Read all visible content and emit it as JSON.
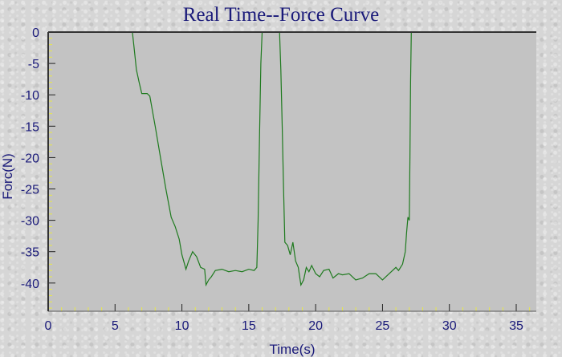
{
  "chart_data": {
    "type": "line",
    "title": "Real Time--Force Curve",
    "xlabel": "Time(s)",
    "ylabel": "Forc(N)",
    "xlim": [
      0,
      36.5
    ],
    "ylim": [
      -44.5,
      0
    ],
    "x_ticks": [
      "0",
      "5",
      "10",
      "15",
      "20",
      "25",
      "30",
      "35"
    ],
    "y_ticks": [
      "0",
      "-5",
      "-10",
      "-15",
      "-20",
      "-25",
      "-30",
      "-35",
      "-40"
    ],
    "colors": {
      "series": "#1e7a1e",
      "plot_bg": "#c3c3c3",
      "text": "#1a1a7a"
    },
    "series": [
      {
        "segments": [
          [
            [
              6.3,
              0
            ],
            [
              6.4,
              -2
            ],
            [
              6.6,
              -6
            ],
            [
              6.8,
              -8
            ],
            [
              7.0,
              -9.8
            ],
            [
              7.4,
              -9.8
            ],
            [
              7.6,
              -10.2
            ],
            [
              8.0,
              -15
            ],
            [
              8.4,
              -20
            ],
            [
              8.8,
              -25
            ],
            [
              9.2,
              -29.5
            ],
            [
              9.5,
              -31
            ],
            [
              9.8,
              -33
            ],
            [
              10.0,
              -35.5
            ],
            [
              10.2,
              -37
            ],
            [
              10.3,
              -37.8
            ],
            [
              10.5,
              -36.5
            ],
            [
              10.8,
              -35
            ],
            [
              11.1,
              -35.8
            ],
            [
              11.4,
              -37.5
            ],
            [
              11.7,
              -37.8
            ],
            [
              11.8,
              -40.3
            ],
            [
              12.0,
              -39.5
            ],
            [
              12.2,
              -39
            ],
            [
              12.5,
              -38
            ],
            [
              13.0,
              -37.8
            ],
            [
              13.5,
              -38.2
            ],
            [
              14.0,
              -38
            ],
            [
              14.5,
              -38.2
            ],
            [
              15.0,
              -37.8
            ],
            [
              15.4,
              -38
            ],
            [
              15.6,
              -37.5
            ],
            [
              15.7,
              -30
            ],
            [
              15.8,
              -17
            ],
            [
              15.9,
              -5
            ],
            [
              16.0,
              0
            ]
          ],
          [
            [
              17.3,
              0
            ],
            [
              17.4,
              -6
            ],
            [
              17.5,
              -15
            ],
            [
              17.6,
              -25
            ],
            [
              17.7,
              -33.5
            ],
            [
              17.9,
              -34
            ],
            [
              18.1,
              -35.5
            ],
            [
              18.3,
              -33.5
            ],
            [
              18.5,
              -36.5
            ],
            [
              18.7,
              -37.5
            ],
            [
              18.9,
              -40.3
            ],
            [
              19.1,
              -39.5
            ],
            [
              19.3,
              -37.5
            ],
            [
              19.5,
              -38.2
            ],
            [
              19.7,
              -37.2
            ],
            [
              20.0,
              -38.5
            ],
            [
              20.3,
              -39
            ],
            [
              20.6,
              -38
            ],
            [
              21.0,
              -37.8
            ],
            [
              21.3,
              -39.2
            ],
            [
              21.7,
              -38.5
            ],
            [
              22.0,
              -38.7
            ],
            [
              22.5,
              -38.5
            ],
            [
              23.0,
              -39.5
            ],
            [
              23.5,
              -39.2
            ],
            [
              24.0,
              -38.5
            ],
            [
              24.5,
              -38.5
            ],
            [
              25.0,
              -39.5
            ],
            [
              25.5,
              -38.5
            ],
            [
              26.0,
              -37.5
            ],
            [
              26.2,
              -38
            ],
            [
              26.5,
              -37
            ],
            [
              26.7,
              -35
            ],
            [
              26.8,
              -32
            ],
            [
              26.9,
              -29.5
            ],
            [
              27.0,
              -30
            ],
            [
              27.05,
              -20
            ],
            [
              27.1,
              -8
            ],
            [
              27.15,
              0
            ]
          ]
        ]
      }
    ]
  }
}
